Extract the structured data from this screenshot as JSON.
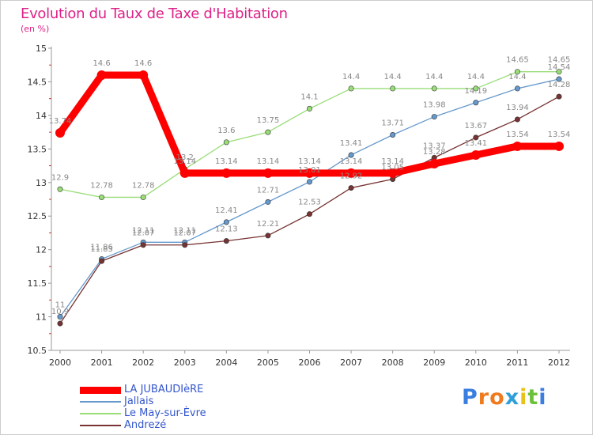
{
  "header": {
    "title": "Evolution du Taux de Taxe d'Habitation",
    "unit": "(en %)"
  },
  "brand": {
    "text": "Proxiti",
    "letter_colors": [
      "#3a7ee0",
      "#f07a1e",
      "#f07a1e",
      "#2e9fd8",
      "#e8c21a",
      "#6cc03a",
      "#3a7ee0"
    ]
  },
  "chart_data": {
    "type": "line",
    "title": "Evolution du Taux de Taxe d'Habitation",
    "ylabel": "(en %)",
    "xlabel": "",
    "x": [
      2000,
      2001,
      2002,
      2003,
      2004,
      2005,
      2006,
      2007,
      2008,
      2009,
      2010,
      2011,
      2012
    ],
    "ylim": [
      10.5,
      15
    ],
    "yticks": [
      10.5,
      11,
      11.5,
      12,
      12.5,
      13,
      13.5,
      14,
      14.5,
      15
    ],
    "grid": false,
    "legend_position": "bottom-left",
    "series": [
      {
        "name": "LA JUBAUDIèRE",
        "color": "#ff0000",
        "values": [
          13.74,
          14.6,
          14.6,
          13.14,
          13.14,
          13.14,
          13.14,
          13.14,
          13.14,
          13.28,
          13.41,
          13.54,
          13.54
        ],
        "labels": [
          "13.74",
          "14.6",
          "14.6",
          "13.14",
          "13.14",
          "13.14",
          "13.14",
          "13.14",
          "13.14",
          "13.28",
          "13.41",
          "13.54",
          "13.54"
        ]
      },
      {
        "name": "Jallais",
        "color": "#6699cc",
        "values": [
          11,
          11.86,
          12.11,
          12.11,
          12.41,
          12.71,
          13.01,
          13.41,
          13.71,
          13.98,
          14.19,
          14.4,
          14.54
        ],
        "labels": [
          "11",
          "11.86",
          "12.11",
          "12.11",
          "12.41",
          "12.71",
          "13.01",
          "13.41",
          "13.71",
          "13.98",
          "14.19",
          "14.4",
          "14.54"
        ]
      },
      {
        "name": "Le May-sur-Èvre",
        "color": "#99dd77",
        "values": [
          12.9,
          12.78,
          12.78,
          13.2,
          13.6,
          13.75,
          14.1,
          14.4,
          14.4,
          14.4,
          14.4,
          14.65,
          14.65
        ],
        "labels": [
          "12.9",
          "12.78",
          "12.78",
          "13.2",
          "13.6",
          "13.75",
          "14.1",
          "14.4",
          "14.4",
          "14.4",
          "14.4",
          "14.65",
          "14.65"
        ]
      },
      {
        "name": "Andrezé",
        "color": "#773333",
        "values": [
          10.9,
          11.83,
          12.07,
          12.07,
          12.13,
          12.21,
          12.53,
          12.92,
          13.05,
          13.37,
          13.67,
          13.94,
          14.28
        ],
        "labels": [
          "10.9",
          "11.83",
          "12.07",
          "12.07",
          "12.13",
          "12.21",
          "12.53",
          "12.92",
          "13.05",
          "13.37",
          "13.67",
          "13.94",
          "14.28"
        ]
      }
    ]
  }
}
